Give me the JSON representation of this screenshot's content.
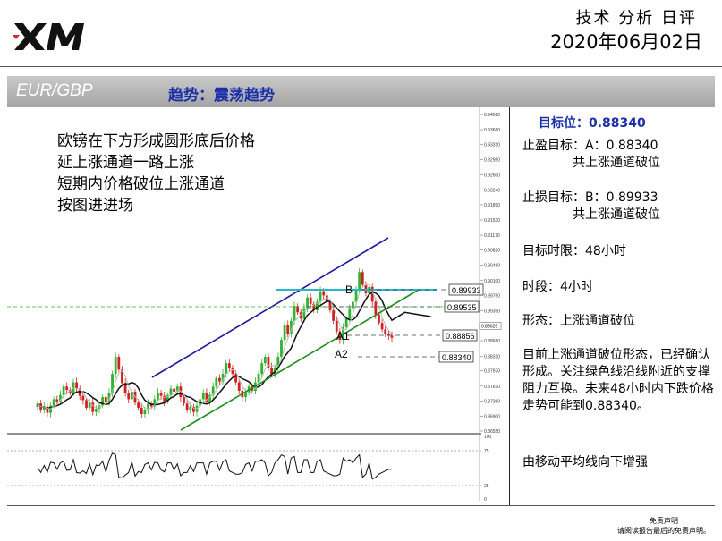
{
  "header": {
    "logo_text": "XM",
    "title": "技术 分析 日评",
    "date": "2020年06月02日"
  },
  "bar": {
    "pair": "EUR/GBP",
    "trend": "趋势：震荡趋势"
  },
  "note": [
    "欧镑在下方形成圆形底后价格",
    "延上涨通道一路上涨",
    "短期内价格破位上涨通道",
    "按图进进场"
  ],
  "side": {
    "target": "目标位：0.88340",
    "tp_line1": "止盈目标：A：0.88340",
    "tp_line2": "共上涨通道破位",
    "sl_line1": "止损目标：B：0.89933",
    "sl_line2": "共上涨通道破位",
    "time_limit": "目标时限：48小时",
    "period": "时段：4小时",
    "pattern": "形态：上涨通道破位",
    "description": "目前上涨通道破位形态，已经确认形成。关注绿色线沿线附近的支撑阻力互换。未来48小时内下跌价格走势可能到0.88340。",
    "ma_note": "由移动平均线向下增强"
  },
  "footer": {
    "line1": "免责声明",
    "line2": "请阅读报告最后的免责声明。"
  },
  "colors": {
    "up_candle": "#2db52d",
    "down_candle": "#d62020",
    "channel_upper": "#1c1ca0",
    "channel_lower": "#1f8f1f",
    "cyan_level": "#29b6c7",
    "title_blue": "#1b2fa8"
  },
  "chart_data": {
    "type": "candlestick",
    "annotations": {
      "B": "B",
      "A1": "A1",
      "A2": "A2"
    },
    "levels": [
      {
        "label": "0.89933",
        "value": 0.89933
      },
      {
        "label": "0.89535",
        "value": 0.89535
      },
      {
        "label": "0.88856",
        "value": 0.88856
      },
      {
        "label": "0.88340",
        "value": 0.8834
      }
    ],
    "price_axis_ticks": [
      "0.94020",
      "0.93660",
      "0.93310",
      "0.92950",
      "0.92600",
      "0.92240",
      "0.91890",
      "0.91530",
      "0.91170",
      "0.90820",
      "0.90460",
      "0.90100",
      "0.89750",
      "0.89390",
      "0.89029",
      "0.88680",
      "0.88310",
      "0.87970",
      "0.87610",
      "0.87260",
      "0.86900",
      "0.86550"
    ],
    "price_range": [
      0.8655,
      0.9402
    ],
    "current_price": 0.89029,
    "close_series": [
      0.872,
      0.8705,
      0.8712,
      0.8698,
      0.8715,
      0.873,
      0.8725,
      0.874,
      0.876,
      0.8752,
      0.8745,
      0.877,
      0.8755,
      0.8738,
      0.8728,
      0.871,
      0.8722,
      0.87,
      0.8708,
      0.8715,
      0.8735,
      0.8722,
      0.8745,
      0.879,
      0.883,
      0.88,
      0.8768,
      0.8745,
      0.873,
      0.8748,
      0.8722,
      0.871,
      0.8695,
      0.8705,
      0.872,
      0.8713,
      0.873,
      0.8745,
      0.8738,
      0.8725,
      0.874,
      0.8755,
      0.8748,
      0.876,
      0.8735,
      0.872,
      0.8705,
      0.8712,
      0.87,
      0.8715,
      0.873,
      0.8745,
      0.8725,
      0.874,
      0.876,
      0.878,
      0.8772,
      0.879,
      0.8815,
      0.8805,
      0.879,
      0.877,
      0.875,
      0.8735,
      0.8745,
      0.876,
      0.875,
      0.877,
      0.879,
      0.8815,
      0.883,
      0.8805,
      0.879,
      0.8805,
      0.883,
      0.887,
      0.8905,
      0.8885,
      0.8915,
      0.895,
      0.8935,
      0.892,
      0.8945,
      0.897,
      0.8955,
      0.894,
      0.896,
      0.8985,
      0.8975,
      0.896,
      0.894,
      0.8915,
      0.889,
      0.887,
      0.89,
      0.892,
      0.8945,
      0.896,
      0.899,
      0.903,
      0.9,
      0.898,
      0.8995,
      0.896,
      0.893,
      0.891,
      0.8895,
      0.8885,
      0.888,
      0.8875
    ],
    "rsi_range": [
      25,
      75
    ],
    "rsi_ticks": [
      "100",
      "75",
      "25",
      "0"
    ]
  }
}
